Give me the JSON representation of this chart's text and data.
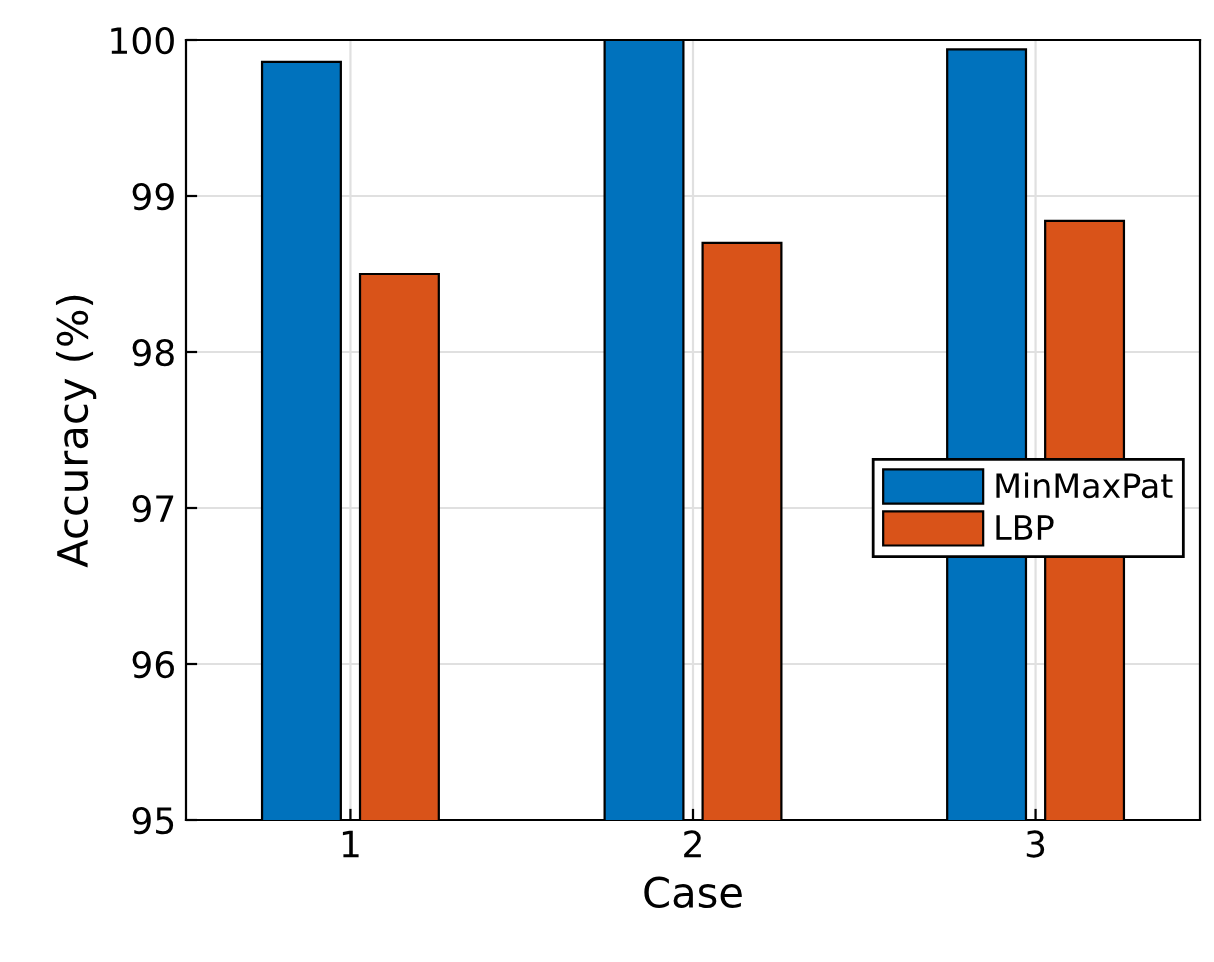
{
  "chart_data": {
    "type": "bar",
    "xlabel": "Case",
    "ylabel": "Accuracy (%)",
    "categories": [
      "1",
      "2",
      "3"
    ],
    "series": [
      {
        "name": "MinMaxPat",
        "color": "#0072bd",
        "values": [
          99.86,
          100,
          99.94
        ]
      },
      {
        "name": "LBP",
        "color": "#d95319",
        "values": [
          98.5,
          98.7,
          98.84
        ]
      }
    ],
    "ylim": [
      95,
      100
    ],
    "yticks": [
      95,
      96,
      97,
      98,
      99,
      100
    ],
    "grid": true,
    "legend": "right"
  }
}
